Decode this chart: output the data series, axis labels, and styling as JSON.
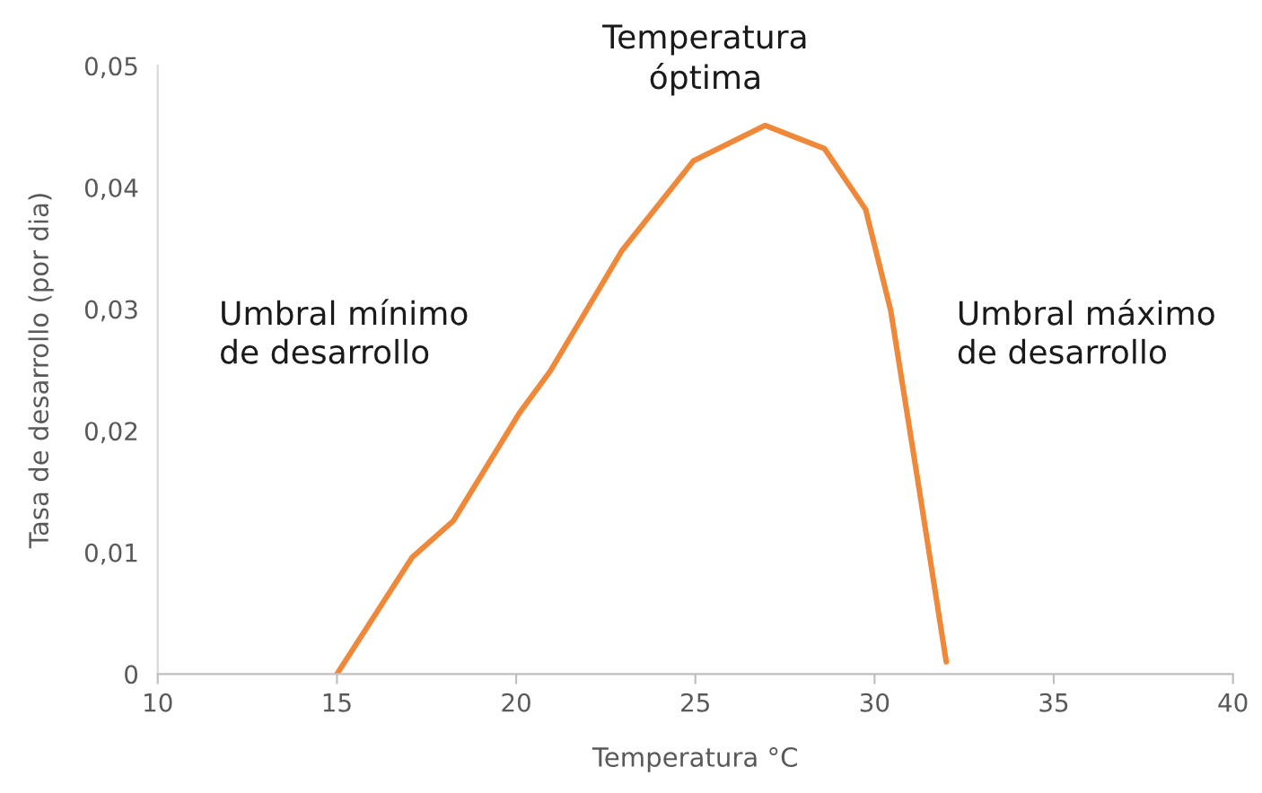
{
  "chart_data": {
    "type": "line",
    "xlabel": "Temperatura °C",
    "ylabel": "Tasa de desarrollo (por dia)",
    "x": [
      15.0,
      17.1,
      18.25,
      20.1,
      20.95,
      22.95,
      24.95,
      26.95,
      28.6,
      29.75,
      30.45,
      31.25,
      32.0
    ],
    "series": [
      {
        "color": "#f0883a",
        "values": [
          0,
          0.0096,
          0.0126,
          0.0215,
          0.0249,
          0.0348,
          0.0422,
          0.0451,
          0.0432,
          0.0382,
          0.0299,
          0.0151,
          0.001
        ]
      }
    ],
    "xlim": [
      10,
      40
    ],
    "xticks": [
      10,
      15,
      20,
      25,
      30,
      35,
      40
    ],
    "ylim": [
      0,
      0.05
    ],
    "yticks": [
      {
        "value": 0,
        "label": "0"
      },
      {
        "value": 0.01,
        "label": "0,01"
      },
      {
        "value": 0.02,
        "label": "0,02"
      },
      {
        "value": 0.03,
        "label": "0,03"
      },
      {
        "value": 0.04,
        "label": "0,04"
      },
      {
        "value": 0.05,
        "label": "0,05"
      }
    ],
    "annotations": [
      "Umbral mínimo\nde desarrollo",
      {
        "text": "Temperatura\nóptima",
        "x": 26.95,
        "y": 0.0451
      },
      "Umbral máximo\nde desarrollo"
    ],
    "grid": false,
    "legend": false,
    "marker": "none",
    "line_style": "solid"
  }
}
